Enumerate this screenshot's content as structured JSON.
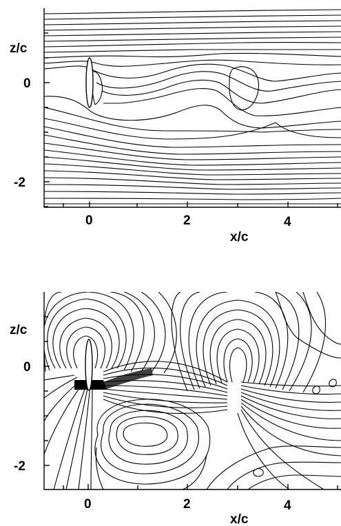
{
  "panels": [
    {
      "id": "top",
      "xlabel": "x/c",
      "ylabel": "z/c",
      "xticks": [
        "0",
        "2",
        "4"
      ],
      "yticks": [
        "0",
        "-2"
      ]
    },
    {
      "id": "bottom",
      "xlabel": "x/c",
      "ylabel": "z/c",
      "xticks": [
        "0",
        "2",
        "4"
      ],
      "yticks": [
        "0",
        "-2"
      ]
    }
  ]
}
